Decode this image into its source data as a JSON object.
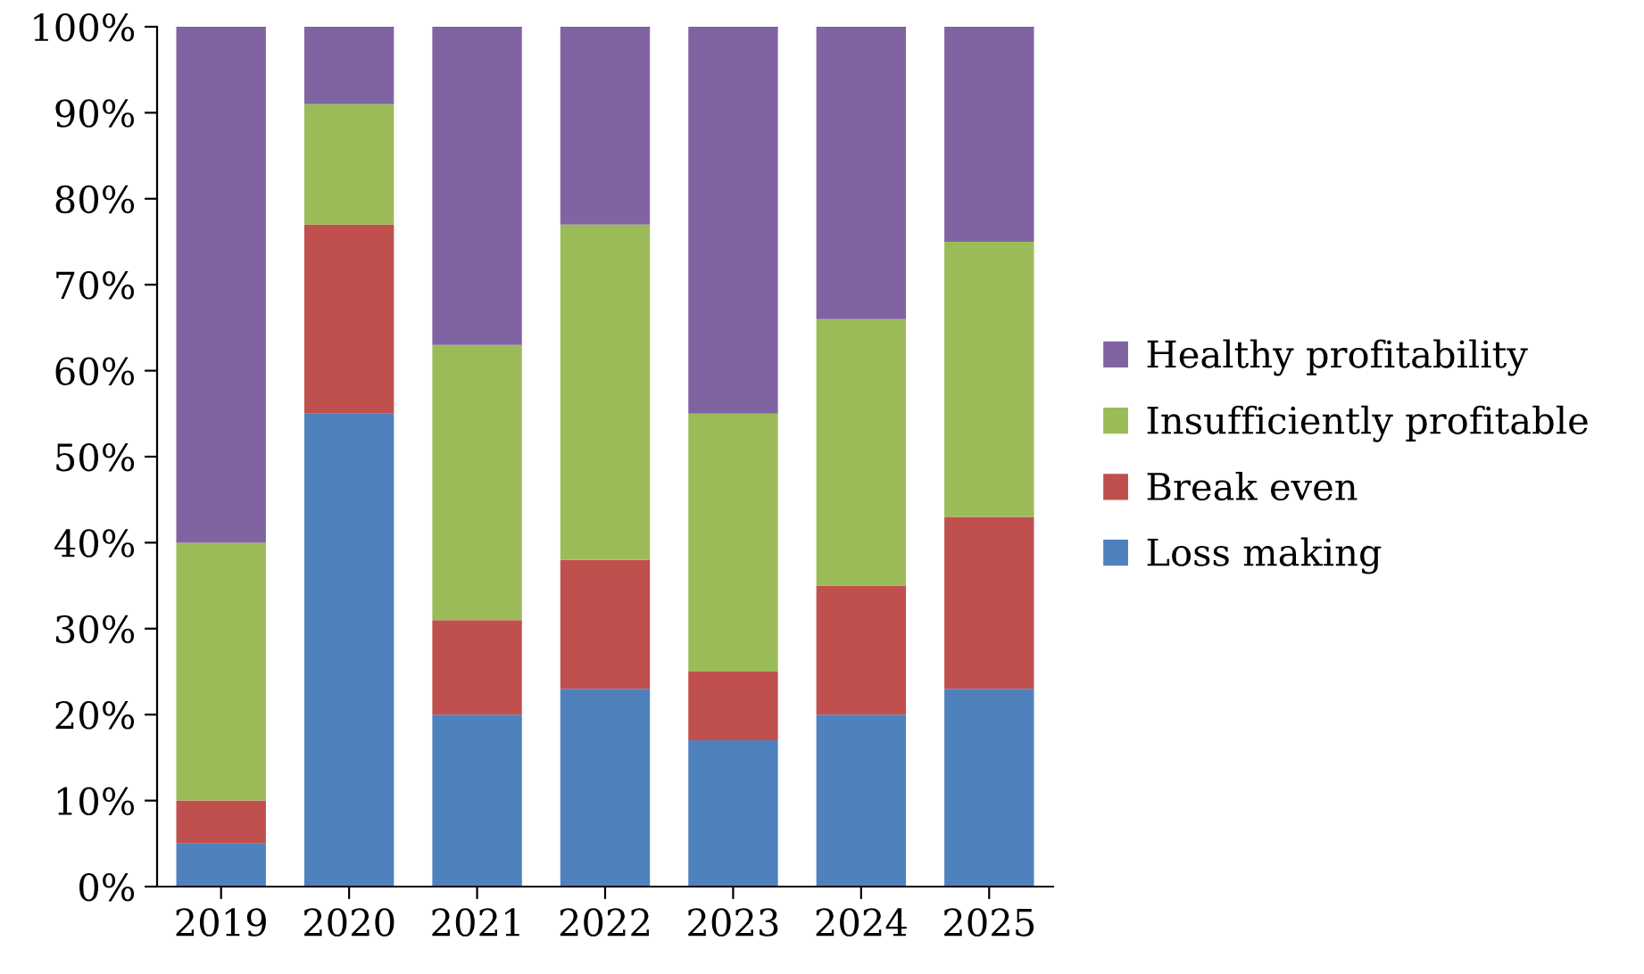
{
  "chart_data": {
    "type": "bar",
    "stacked": true,
    "categories": [
      "2019",
      "2020",
      "2021",
      "2022",
      "2023",
      "2024",
      "2025"
    ],
    "series": [
      {
        "name": "Loss making",
        "color": "#4f81bd",
        "values": [
          5,
          55,
          20,
          23,
          17,
          20,
          23
        ]
      },
      {
        "name": "Break even",
        "color": "#c0504d",
        "values": [
          5,
          22,
          11,
          15,
          8,
          15,
          20
        ]
      },
      {
        "name": "Insufficiently profitable",
        "color": "#9bbb59",
        "values": [
          30,
          14,
          32,
          39,
          30,
          31,
          32
        ]
      },
      {
        "name": "Healthy profitability",
        "color": "#8064a2",
        "values": [
          60,
          9,
          37,
          23,
          45,
          34,
          25
        ]
      }
    ],
    "ylim": [
      0,
      100
    ],
    "yticks": [
      {
        "value": 0,
        "label": "0%"
      },
      {
        "value": 10,
        "label": "10%"
      },
      {
        "value": 20,
        "label": "20%"
      },
      {
        "value": 30,
        "label": "30%"
      },
      {
        "value": 40,
        "label": "40%"
      },
      {
        "value": 50,
        "label": "50%"
      },
      {
        "value": 60,
        "label": "60%"
      },
      {
        "value": 70,
        "label": "70%"
      },
      {
        "value": 80,
        "label": "80%"
      },
      {
        "value": 90,
        "label": "90%"
      },
      {
        "value": 100,
        "label": "100%"
      }
    ],
    "grid": false,
    "legend": "right"
  }
}
